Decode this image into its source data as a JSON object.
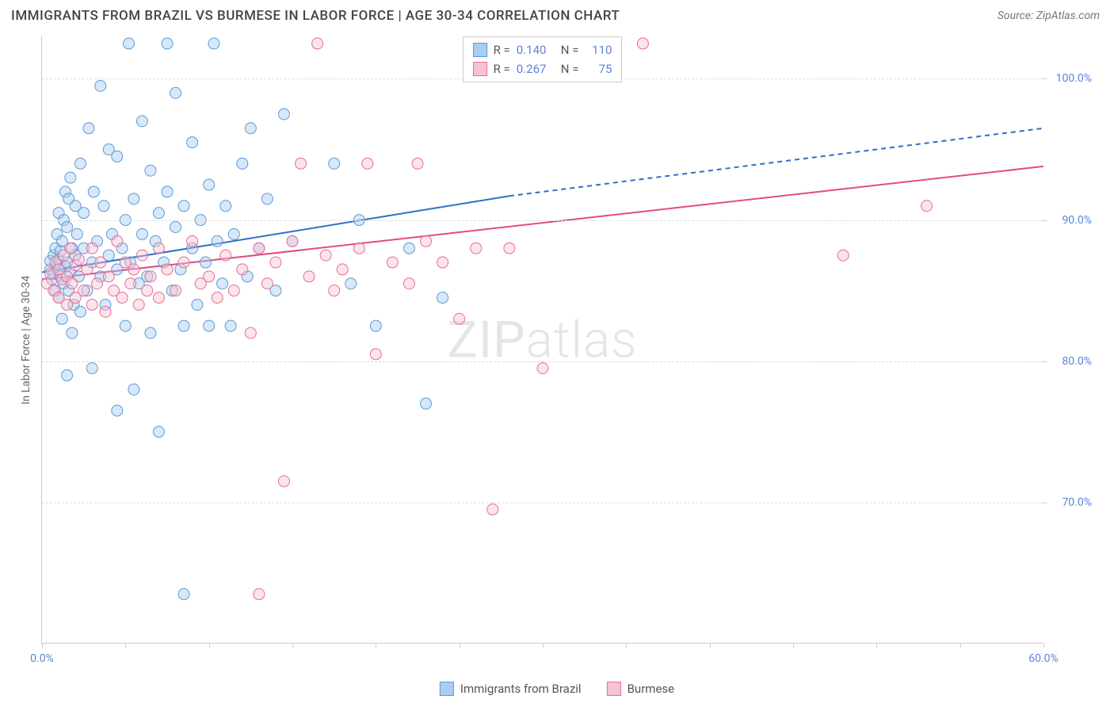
{
  "header": {
    "title": "IMMIGRANTS FROM BRAZIL VS BURMESE IN LABOR FORCE | AGE 30-34 CORRELATION CHART",
    "source": "Source: ZipAtlas.com"
  },
  "chart": {
    "type": "scatter",
    "ylabel": "In Labor Force | Age 30-34",
    "watermark": "ZIPatlas",
    "xlim": [
      0,
      60
    ],
    "ylim": [
      60,
      103
    ],
    "xticks": [
      0,
      5,
      10,
      15,
      20,
      25,
      30,
      35,
      40,
      45,
      50,
      55,
      60
    ],
    "xtick_labels": {
      "0": "0.0%",
      "60": "60.0%"
    },
    "yticks": [
      70,
      80,
      90,
      100
    ],
    "ytick_labels": {
      "70": "70.0%",
      "80": "80.0%",
      "90": "90.0%",
      "100": "100.0%"
    },
    "grid_color": "#dddddd",
    "axis_color": "#cccccc",
    "tick_label_color": "#5b85d6",
    "background_color": "#ffffff",
    "marker_radius": 7,
    "marker_opacity": 0.45,
    "series": [
      {
        "id": "brazil",
        "label": "Immigrants from Brazil",
        "color_fill": "#a8cdf0",
        "color_stroke": "#5b9bd5",
        "r": "0.140",
        "n": "110",
        "trend": {
          "x1": 0,
          "y1": 86.3,
          "x2": 28,
          "y2": 91.7,
          "dash_from_x": 28,
          "dash_to_x": 60,
          "dash_to_y": 96.5,
          "color": "#2f6fc8",
          "width": 2
        },
        "points": [
          [
            0.5,
            86.5
          ],
          [
            0.5,
            87.1
          ],
          [
            0.6,
            85.8
          ],
          [
            0.7,
            87.5
          ],
          [
            0.7,
            86.2
          ],
          [
            0.8,
            88.0
          ],
          [
            0.8,
            85.0
          ],
          [
            0.9,
            86.8
          ],
          [
            0.9,
            89.0
          ],
          [
            1.0,
            87.2
          ],
          [
            1.0,
            90.5
          ],
          [
            1.0,
            84.5
          ],
          [
            1.1,
            86.0
          ],
          [
            1.1,
            87.8
          ],
          [
            1.2,
            83.0
          ],
          [
            1.2,
            88.5
          ],
          [
            1.3,
            85.5
          ],
          [
            1.3,
            90.0
          ],
          [
            1.4,
            86.7
          ],
          [
            1.4,
            92.0
          ],
          [
            1.5,
            79.0
          ],
          [
            1.5,
            87.0
          ],
          [
            1.5,
            89.5
          ],
          [
            1.6,
            91.5
          ],
          [
            1.6,
            85.0
          ],
          [
            1.7,
            86.3
          ],
          [
            1.7,
            93.0
          ],
          [
            1.8,
            88.0
          ],
          [
            1.8,
            82.0
          ],
          [
            1.9,
            84.0
          ],
          [
            2.0,
            87.5
          ],
          [
            2.0,
            91.0
          ],
          [
            2.1,
            89.0
          ],
          [
            2.2,
            86.0
          ],
          [
            2.3,
            94.0
          ],
          [
            2.3,
            83.5
          ],
          [
            2.5,
            88.0
          ],
          [
            2.5,
            90.5
          ],
          [
            2.7,
            85.0
          ],
          [
            2.8,
            96.5
          ],
          [
            3.0,
            87.0
          ],
          [
            3.0,
            79.5
          ],
          [
            3.1,
            92.0
          ],
          [
            3.3,
            88.5
          ],
          [
            3.5,
            86.0
          ],
          [
            3.5,
            99.5
          ],
          [
            3.7,
            91.0
          ],
          [
            3.8,
            84.0
          ],
          [
            4.0,
            87.5
          ],
          [
            4.0,
            95.0
          ],
          [
            4.2,
            89.0
          ],
          [
            4.5,
            86.5
          ],
          [
            4.5,
            94.5
          ],
          [
            4.5,
            76.5
          ],
          [
            4.8,
            88.0
          ],
          [
            5.0,
            90.0
          ],
          [
            5.0,
            82.5
          ],
          [
            5.2,
            102.5
          ],
          [
            5.3,
            87.0
          ],
          [
            5.5,
            91.5
          ],
          [
            5.5,
            78.0
          ],
          [
            5.8,
            85.5
          ],
          [
            6.0,
            89.0
          ],
          [
            6.0,
            97.0
          ],
          [
            6.3,
            86.0
          ],
          [
            6.5,
            93.5
          ],
          [
            6.5,
            82.0
          ],
          [
            6.8,
            88.5
          ],
          [
            7.0,
            90.5
          ],
          [
            7.0,
            75.0
          ],
          [
            7.3,
            87.0
          ],
          [
            7.5,
            92.0
          ],
          [
            7.5,
            102.5
          ],
          [
            7.8,
            85.0
          ],
          [
            8.0,
            89.5
          ],
          [
            8.0,
            99.0
          ],
          [
            8.3,
            86.5
          ],
          [
            8.5,
            91.0
          ],
          [
            8.5,
            82.5
          ],
          [
            8.5,
            63.5
          ],
          [
            9.0,
            88.0
          ],
          [
            9.0,
            95.5
          ],
          [
            9.3,
            84.0
          ],
          [
            9.5,
            90.0
          ],
          [
            9.8,
            87.0
          ],
          [
            10.0,
            92.5
          ],
          [
            10.0,
            82.5
          ],
          [
            10.3,
            102.5
          ],
          [
            10.5,
            88.5
          ],
          [
            10.8,
            85.5
          ],
          [
            11.0,
            91.0
          ],
          [
            11.3,
            82.5
          ],
          [
            11.5,
            89.0
          ],
          [
            12.0,
            94.0
          ],
          [
            12.3,
            86.0
          ],
          [
            12.5,
            96.5
          ],
          [
            13.0,
            88.0
          ],
          [
            13.5,
            91.5
          ],
          [
            14.0,
            85.0
          ],
          [
            14.5,
            97.5
          ],
          [
            15.0,
            88.5
          ],
          [
            17.5,
            94.0
          ],
          [
            18.5,
            85.5
          ],
          [
            19.0,
            90.0
          ],
          [
            20.0,
            82.5
          ],
          [
            22.0,
            88.0
          ],
          [
            23.0,
            77.0
          ],
          [
            24.0,
            84.5
          ]
        ]
      },
      {
        "id": "burmese",
        "label": "Burmese",
        "color_fill": "#f6c3d2",
        "color_stroke": "#e86d94",
        "r": "0.267",
        "n": "75",
        "trend": {
          "x1": 0,
          "y1": 85.8,
          "x2": 60,
          "y2": 93.8,
          "color": "#e24c7e",
          "width": 2
        },
        "points": [
          [
            0.3,
            85.5
          ],
          [
            0.5,
            86.2
          ],
          [
            0.7,
            85.0
          ],
          [
            0.8,
            87.0
          ],
          [
            1.0,
            84.5
          ],
          [
            1.0,
            86.5
          ],
          [
            1.2,
            85.8
          ],
          [
            1.3,
            87.5
          ],
          [
            1.5,
            84.0
          ],
          [
            1.5,
            86.0
          ],
          [
            1.7,
            88.0
          ],
          [
            1.8,
            85.5
          ],
          [
            2.0,
            86.8
          ],
          [
            2.0,
            84.5
          ],
          [
            2.2,
            87.2
          ],
          [
            2.5,
            85.0
          ],
          [
            2.7,
            86.5
          ],
          [
            3.0,
            88.0
          ],
          [
            3.0,
            84.0
          ],
          [
            3.3,
            85.5
          ],
          [
            3.5,
            87.0
          ],
          [
            3.8,
            83.5
          ],
          [
            4.0,
            86.0
          ],
          [
            4.3,
            85.0
          ],
          [
            4.5,
            88.5
          ],
          [
            4.8,
            84.5
          ],
          [
            5.0,
            87.0
          ],
          [
            5.3,
            85.5
          ],
          [
            5.5,
            86.5
          ],
          [
            5.8,
            84.0
          ],
          [
            6.0,
            87.5
          ],
          [
            6.3,
            85.0
          ],
          [
            6.5,
            86.0
          ],
          [
            7.0,
            88.0
          ],
          [
            7.0,
            84.5
          ],
          [
            7.5,
            86.5
          ],
          [
            8.0,
            85.0
          ],
          [
            8.5,
            87.0
          ],
          [
            9.0,
            88.5
          ],
          [
            9.5,
            85.5
          ],
          [
            10.0,
            86.0
          ],
          [
            10.5,
            84.5
          ],
          [
            11.0,
            87.5
          ],
          [
            11.5,
            85.0
          ],
          [
            12.0,
            86.5
          ],
          [
            12.5,
            82.0
          ],
          [
            13.0,
            88.0
          ],
          [
            13.0,
            63.5
          ],
          [
            13.5,
            85.5
          ],
          [
            14.0,
            87.0
          ],
          [
            14.5,
            71.5
          ],
          [
            15.0,
            88.5
          ],
          [
            15.5,
            94.0
          ],
          [
            16.0,
            86.0
          ],
          [
            16.5,
            102.5
          ],
          [
            17.0,
            87.5
          ],
          [
            17.5,
            85.0
          ],
          [
            18.0,
            86.5
          ],
          [
            19.0,
            88.0
          ],
          [
            19.5,
            94.0
          ],
          [
            20.0,
            80.5
          ],
          [
            21.0,
            87.0
          ],
          [
            22.0,
            85.5
          ],
          [
            22.5,
            94.0
          ],
          [
            23.0,
            88.5
          ],
          [
            24.0,
            87.0
          ],
          [
            25.0,
            83.0
          ],
          [
            26.0,
            88.0
          ],
          [
            27.0,
            69.5
          ],
          [
            28.0,
            88.0
          ],
          [
            30.0,
            79.5
          ],
          [
            36.0,
            102.5
          ],
          [
            48.0,
            87.5
          ],
          [
            53.0,
            91.0
          ]
        ]
      }
    ],
    "legend_stats": {
      "r_label": "R =",
      "n_label": "N ="
    },
    "bottom_legend": true
  }
}
